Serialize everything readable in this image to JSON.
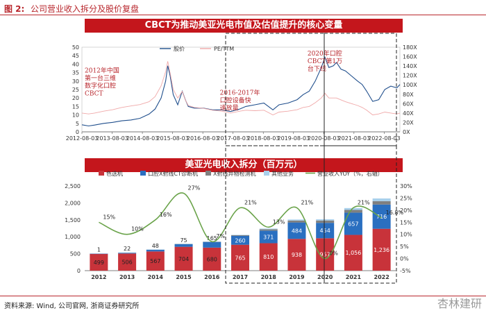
{
  "header": {
    "fig_num": "图 2:",
    "title": "公司营业收入拆分及股价复盘"
  },
  "footer": {
    "source": "资料来源: Wind, 公司官网, 浙商证券研究所"
  },
  "watermark": "杏林建研",
  "chart_data": [
    {
      "type": "line",
      "title": "CBCT为推动美亚光电市值及估值提升的核心变量",
      "legend": [
        "股价",
        "PE/TTM"
      ],
      "legend_placement": "top",
      "series_colors": {
        "price": "#1f4e8c",
        "pe": "#f0a8a8"
      },
      "x_ticks": [
        "2012-08-03",
        "2013-08-03",
        "2014-08-03",
        "2015-08-03",
        "2016-08-03",
        "2017-08-03",
        "2018-08-03",
        "2019-08-03",
        "2020-08-03",
        "2021-08-03",
        "2022-08-03"
      ],
      "y_left_ticks": [
        "0",
        "5",
        "10",
        "15",
        "20",
        "25",
        "30",
        "35",
        "40",
        "45",
        "50"
      ],
      "y_left_range": [
        0,
        50
      ],
      "y_right_ticks": [
        "0X",
        "20X",
        "40X",
        "60X",
        "80X",
        "100X",
        "120X",
        "140X",
        "160X",
        "180X"
      ],
      "y_right_range": [
        0,
        180
      ],
      "x_range": [
        2012.58,
        2023.1
      ],
      "series": [
        {
          "key": "price",
          "name": "股价",
          "points": [
            [
              2012.58,
              4.2
            ],
            [
              2012.8,
              3.5
            ],
            [
              2013.0,
              4.0
            ],
            [
              2013.3,
              5.0
            ],
            [
              2013.6,
              5.6
            ],
            [
              2013.9,
              6.5
            ],
            [
              2014.2,
              7.0
            ],
            [
              2014.5,
              8.0
            ],
            [
              2014.8,
              10.5
            ],
            [
              2015.0,
              13.5
            ],
            [
              2015.2,
              20
            ],
            [
              2015.35,
              30
            ],
            [
              2015.42,
              39
            ],
            [
              2015.5,
              33
            ],
            [
              2015.6,
              22
            ],
            [
              2015.75,
              16
            ],
            [
              2015.9,
              24
            ],
            [
              2016.0,
              19
            ],
            [
              2016.1,
              15
            ],
            [
              2016.3,
              14
            ],
            [
              2016.6,
              14
            ],
            [
              2016.9,
              13
            ],
            [
              2017.2,
              13
            ],
            [
              2017.5,
              12
            ],
            [
              2017.8,
              13.5
            ],
            [
              2018.0,
              15
            ],
            [
              2018.3,
              16
            ],
            [
              2018.6,
              17
            ],
            [
              2018.9,
              13
            ],
            [
              2019.1,
              16
            ],
            [
              2019.4,
              17
            ],
            [
              2019.7,
              19
            ],
            [
              2019.9,
              22
            ],
            [
              2020.1,
              24
            ],
            [
              2020.3,
              30
            ],
            [
              2020.5,
              38
            ],
            [
              2020.62,
              44
            ],
            [
              2020.75,
              38
            ],
            [
              2020.9,
              39
            ],
            [
              2021.0,
              41
            ],
            [
              2021.15,
              37
            ],
            [
              2021.3,
              36
            ],
            [
              2021.5,
              33
            ],
            [
              2021.7,
              30
            ],
            [
              2021.85,
              28
            ],
            [
              2022.0,
              24
            ],
            [
              2022.2,
              18
            ],
            [
              2022.4,
              19
            ],
            [
              2022.6,
              25
            ],
            [
              2022.8,
              27
            ],
            [
              2023.0,
              26
            ],
            [
              2023.1,
              28
            ]
          ]
        },
        {
          "key": "pe",
          "name": "PE/TTM",
          "points": [
            [
              2012.58,
              40
            ],
            [
              2012.8,
              38
            ],
            [
              2013.0,
              40
            ],
            [
              2013.3,
              44
            ],
            [
              2013.6,
              47
            ],
            [
              2013.9,
              52
            ],
            [
              2014.2,
              55
            ],
            [
              2014.5,
              58
            ],
            [
              2014.8,
              64
            ],
            [
              2015.0,
              75
            ],
            [
              2015.2,
              98
            ],
            [
              2015.35,
              128
            ],
            [
              2015.42,
              150
            ],
            [
              2015.5,
              125
            ],
            [
              2015.6,
              90
            ],
            [
              2015.75,
              72
            ],
            [
              2015.9,
              86
            ],
            [
              2016.0,
              68
            ],
            [
              2016.1,
              56
            ],
            [
              2016.3,
              52
            ],
            [
              2016.6,
              50
            ],
            [
              2016.9,
              46
            ],
            [
              2017.2,
              44
            ],
            [
              2017.5,
              40
            ],
            [
              2017.8,
              44
            ],
            [
              2018.0,
              46
            ],
            [
              2018.3,
              45
            ],
            [
              2018.6,
              46
            ],
            [
              2018.9,
              36
            ],
            [
              2019.1,
              42
            ],
            [
              2019.4,
              44
            ],
            [
              2019.7,
              47
            ],
            [
              2019.9,
              52
            ],
            [
              2020.1,
              54
            ],
            [
              2020.3,
              62
            ],
            [
              2020.5,
              72
            ],
            [
              2020.62,
              82
            ],
            [
              2020.75,
              72
            ],
            [
              2020.9,
              72
            ],
            [
              2021.0,
              72
            ],
            [
              2021.15,
              68
            ],
            [
              2021.3,
              64
            ],
            [
              2021.5,
              60
            ],
            [
              2021.7,
              56
            ],
            [
              2021.85,
              52
            ],
            [
              2022.0,
              46
            ],
            [
              2022.2,
              36
            ],
            [
              2022.4,
              38
            ],
            [
              2022.6,
              42
            ],
            [
              2022.8,
              40
            ],
            [
              2023.0,
              38
            ],
            [
              2023.1,
              40
            ]
          ]
        }
      ],
      "annotations": [
        {
          "text_lines": [
            "2012年中国",
            "第一台三维",
            "数字化口腔",
            "CBCT"
          ],
          "x": 2012.58,
          "y": 35
        },
        {
          "text_lines": [
            "2016-2017年",
            "口腔设备快",
            "速放量"
          ],
          "x": 2017.05,
          "y": 22
        },
        {
          "text_lines": [
            "2020年口腔",
            "CBCT第1万",
            "台下线"
          ],
          "x": 2019.95,
          "y": 45
        }
      ]
    },
    {
      "type": "bar",
      "stacked": true,
      "title": "美亚光电收入拆分（百万元）",
      "legend": [
        "色选机",
        "口腔X射线CT诊断机",
        "X射线异物检测机",
        "其他业务",
        "营业收入YOY（%，右轴）"
      ],
      "legend_placement": "top",
      "series_colors": {
        "sorter": "#c8333a",
        "dental": "#2a6fc0",
        "xray": "#808080",
        "other": "#a8d0ec",
        "yoy": "#6aa34a"
      },
      "categories": [
        "2012",
        "2013",
        "2014",
        "2015",
        "2016",
        "2017",
        "2018",
        "2019",
        "2020",
        "2021",
        "2022"
      ],
      "y_left_ticks": [
        "0",
        "500",
        "1,000",
        "1,500",
        "2,000",
        "2,500"
      ],
      "y_left_range": [
        0,
        2500
      ],
      "y_right_ticks": [
        "-5%",
        "0%",
        "5%",
        "10%",
        "15%",
        "20%",
        "25%",
        "30%"
      ],
      "y_right_range": [
        -5,
        30
      ],
      "series": [
        {
          "key": "sorter",
          "name": "色选机",
          "values": [
            499,
            506,
            567,
            704,
            680,
            765,
            810,
            938,
            957,
            1056,
            1236
          ],
          "labels": [
            "499",
            "506",
            "567",
            "704",
            "680",
            "765",
            "810",
            "938",
            "957",
            "1,056",
            "1,236"
          ]
        },
        {
          "key": "dental",
          "name": "口腔X射线CT诊断机",
          "values": [
            1,
            22,
            48,
            75,
            165,
            260,
            371,
            484,
            454,
            657,
            716
          ],
          "labels": [
            "1",
            "22",
            "48",
            "75",
            "165",
            "260",
            "371",
            "484",
            "454",
            "657",
            "716"
          ]
        },
        {
          "key": "xray",
          "name": "X射线异物检测机",
          "values": [
            0,
            5,
            8,
            10,
            12,
            22,
            42,
            58,
            70,
            80,
            100
          ]
        },
        {
          "key": "other",
          "name": "其他业务",
          "values": [
            0,
            2,
            3,
            5,
            5,
            12,
            20,
            30,
            35,
            55,
            80
          ]
        },
        {
          "key": "yoy",
          "name": "营业收入YOY（%，右轴）",
          "values": [
            15,
            10,
            16,
            27,
            7,
            21,
            13,
            21,
            0,
            21,
            16.8
          ],
          "labels": [
            "15%",
            "10%",
            "16%",
            "27%",
            "7%",
            "21%",
            "13%",
            "21%",
            "0%",
            "21%",
            "16.8%"
          ]
        }
      ]
    }
  ]
}
